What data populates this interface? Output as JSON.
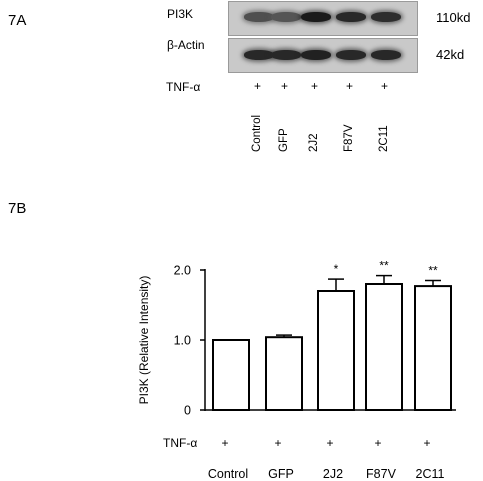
{
  "panel_a": {
    "label": "7A",
    "rows": [
      {
        "name": "PI3K",
        "size": "110kd",
        "intensities": [
          0.55,
          0.5,
          0.95,
          0.85,
          0.8
        ]
      },
      {
        "name": "β-Actin",
        "size": "42kd",
        "intensities": [
          0.85,
          0.85,
          0.9,
          0.85,
          0.85
        ]
      }
    ],
    "treatment_label": "TNF-α",
    "treatment_marks": [
      "+",
      "+",
      "+",
      "+",
      "+"
    ],
    "lanes": [
      "Control",
      "GFP",
      "2J2",
      "F87V",
      "2C11"
    ]
  },
  "panel_b": {
    "label": "7B"
  },
  "chart_data": {
    "type": "bar",
    "categories": [
      "Control",
      "GFP",
      "2J2",
      "F87V",
      "2C11"
    ],
    "values": [
      1.0,
      1.04,
      1.7,
      1.8,
      1.77
    ],
    "errors": [
      0.0,
      0.03,
      0.17,
      0.12,
      0.08
    ],
    "significance": [
      "",
      "",
      "*",
      "**",
      "**"
    ],
    "ylabel": "PI3K (Relative Intensity)",
    "ylim": [
      0,
      2.0
    ],
    "yticks": [
      0,
      1.0,
      2.0
    ],
    "ytick_labels": [
      "0",
      "1.0",
      "2.0"
    ],
    "treatment_label": "TNF-α",
    "treatment_marks": [
      "+",
      "+",
      "+",
      "+",
      "+"
    ],
    "bar_color": "#ffffff",
    "edge_color": "#000000",
    "grid": false
  }
}
